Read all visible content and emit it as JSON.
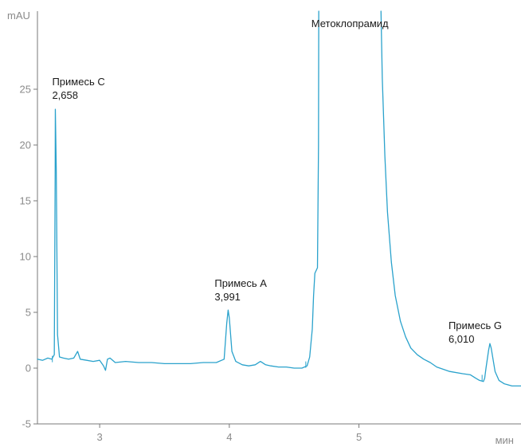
{
  "chart_data": {
    "type": "line",
    "title": "",
    "xlabel": "мин",
    "ylabel": "mAU",
    "xlim": [
      2.52,
      6.25
    ],
    "ylim": [
      -5,
      32
    ],
    "x_ticks": [
      {
        "value": 3,
        "label": "3"
      },
      {
        "value": 4,
        "label": "4"
      },
      {
        "value": 5,
        "label": "5"
      }
    ],
    "y_ticks": [
      {
        "value": -5,
        "label": "-5"
      },
      {
        "value": 0,
        "label": "0"
      },
      {
        "value": 5,
        "label": "5"
      },
      {
        "value": 10,
        "label": "10"
      },
      {
        "value": 15,
        "label": "15"
      },
      {
        "value": 20,
        "label": "20"
      },
      {
        "value": 25,
        "label": "25"
      }
    ],
    "grid": false,
    "colors": {
      "series": "#2aa2cc",
      "axis": "#7a7a7a",
      "tick_text": "#8a8a8a",
      "annotation_text": "#1a1a1a"
    },
    "series": [
      {
        "x": [
          2.52,
          2.56,
          2.6,
          2.63,
          2.65,
          2.657,
          2.658,
          2.665,
          2.675,
          2.69,
          2.72,
          2.76,
          2.8,
          2.83,
          2.85,
          2.9,
          2.95,
          3.0,
          3.03,
          3.045,
          3.06,
          3.08,
          3.12,
          3.2,
          3.3,
          3.4,
          3.5,
          3.6,
          3.7,
          3.8,
          3.9,
          3.96,
          3.98,
          3.991,
          4.0,
          4.02,
          4.05,
          4.1,
          4.15,
          4.2,
          4.24,
          4.28,
          4.32,
          4.38,
          4.44,
          4.5,
          4.56,
          4.6,
          4.62,
          4.64,
          4.65,
          4.66,
          4.68,
          4.688,
          4.69
        ],
        "y": [
          0.8,
          0.7,
          0.9,
          0.8,
          1.2,
          18.0,
          23.2,
          18.0,
          3.0,
          1.0,
          0.9,
          0.8,
          0.9,
          1.5,
          0.8,
          0.7,
          0.6,
          0.7,
          0.2,
          -0.2,
          0.8,
          0.9,
          0.5,
          0.6,
          0.5,
          0.5,
          0.4,
          0.4,
          0.4,
          0.5,
          0.5,
          0.8,
          4.0,
          5.2,
          4.5,
          1.5,
          0.6,
          0.3,
          0.2,
          0.3,
          0.6,
          0.3,
          0.2,
          0.1,
          0.1,
          0.0,
          0.0,
          0.2,
          1.0,
          3.5,
          6.5,
          8.5,
          9.0,
          20.0,
          32.0
        ]
      },
      {
        "x": [
          5.17,
          5.18,
          5.2,
          5.22,
          5.25,
          5.28,
          5.32,
          5.36,
          5.4,
          5.45,
          5.5,
          5.55,
          5.6,
          5.7,
          5.8,
          5.86,
          5.9,
          5.93,
          5.96,
          5.97,
          5.98,
          6.0,
          6.01,
          6.02,
          6.05,
          6.08,
          6.12,
          6.18,
          6.25
        ],
        "y": [
          32.0,
          26.0,
          19.0,
          14.0,
          9.5,
          6.5,
          4.2,
          2.8,
          1.8,
          1.2,
          0.8,
          0.5,
          0.1,
          -0.3,
          -0.5,
          -0.6,
          -0.9,
          -1.1,
          -1.2,
          -0.9,
          0.0,
          1.6,
          2.2,
          1.8,
          -0.3,
          -1.1,
          -1.4,
          -1.6,
          -1.6
        ]
      }
    ],
    "annotations": [
      {
        "name": "Примесь C",
        "rt": "2,658",
        "x": 2.658
      },
      {
        "name": "Примесь A",
        "rt": "3,991",
        "x": 3.991
      },
      {
        "name": "Метоклопрамид",
        "x": 4.93
      },
      {
        "name": "Примесь G",
        "rt": "6,010",
        "x": 6.01
      }
    ],
    "baseline_markers": [
      {
        "x": 2.635,
        "y": 0.6
      },
      {
        "x": 4.59,
        "y": 0.1
      },
      {
        "x": 5.95,
        "y": -1.1
      }
    ]
  }
}
